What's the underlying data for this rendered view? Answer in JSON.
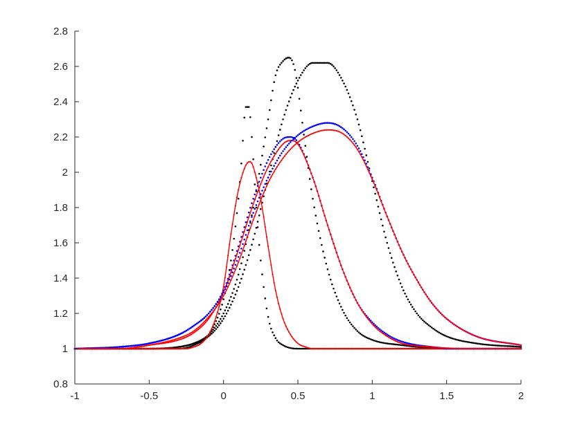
{
  "chart_data": {
    "type": "line",
    "title": "",
    "xlabel": "",
    "ylabel": "",
    "xlim": [
      -1,
      2
    ],
    "ylim": [
      0.8,
      2.8
    ],
    "grid": false,
    "x_ticks": [
      -1,
      -0.5,
      0,
      0.5,
      1,
      1.5,
      2
    ],
    "x_tick_labels": [
      "-1",
      "-0.5",
      "0",
      "0.5",
      "1",
      "1.5",
      "2"
    ],
    "y_ticks": [
      0.8,
      1,
      1.2,
      1.4,
      1.6,
      1.8,
      2,
      2.2,
      2.4,
      2.6,
      2.8
    ],
    "y_tick_labels": [
      "0.8",
      "1",
      "1.2",
      "1.4",
      "1.6",
      "1.8",
      "2",
      "2.2",
      "2.4",
      "2.6",
      "2.8"
    ],
    "colors": {
      "black": "#000000",
      "blue": "#0000ff",
      "red": "#ff0000"
    },
    "series": [
      {
        "style": "black-dots",
        "x": [
          -1,
          -0.5,
          -0.3,
          -0.2,
          -0.1,
          0,
          0.05,
          0.1,
          0.12,
          0.15,
          0.17,
          0.19,
          0.22,
          0.25,
          0.3,
          0.35,
          0.4,
          0.5,
          0.6,
          0.7,
          2
        ],
        "y": [
          1,
          1,
          1.0,
          1.02,
          1.08,
          1.28,
          1.5,
          1.85,
          2.05,
          2.37,
          2.37,
          2.2,
          1.8,
          1.5,
          1.18,
          1.06,
          1.02,
          1.0,
          1.0,
          1,
          1
        ]
      },
      {
        "style": "black-dots",
        "x": [
          -1,
          -0.5,
          -0.3,
          -0.2,
          -0.1,
          0,
          0.1,
          0.2,
          0.3,
          0.35,
          0.4,
          0.44,
          0.48,
          0.55,
          0.6,
          0.7,
          0.8,
          0.9,
          1.0,
          1.2,
          1.5,
          2
        ],
        "y": [
          1,
          1,
          1.01,
          1.03,
          1.08,
          1.2,
          1.42,
          1.8,
          2.3,
          2.55,
          2.63,
          2.65,
          2.58,
          2.15,
          1.85,
          1.45,
          1.22,
          1.1,
          1.05,
          1.02,
          1.0,
          1
        ]
      },
      {
        "style": "black-dots",
        "x": [
          -1,
          -0.5,
          -0.3,
          -0.2,
          -0.1,
          0,
          0.1,
          0.2,
          0.3,
          0.4,
          0.5,
          0.6,
          0.7,
          0.8,
          0.9,
          1.0,
          1.1,
          1.2,
          1.3,
          1.4,
          1.5,
          1.7,
          2
        ],
        "y": [
          1,
          1.0,
          1.01,
          1.03,
          1.07,
          1.17,
          1.35,
          1.62,
          1.97,
          2.3,
          2.52,
          2.62,
          2.62,
          2.52,
          2.3,
          1.95,
          1.6,
          1.35,
          1.2,
          1.12,
          1.07,
          1.03,
          1.01
        ]
      },
      {
        "style": "red-line",
        "x": [
          -1,
          -0.5,
          -0.3,
          -0.25,
          -0.2,
          -0.15,
          -0.1,
          -0.05,
          0,
          0.05,
          0.1,
          0.15,
          0.18,
          0.22,
          0.25,
          0.3,
          0.35,
          0.4,
          0.45,
          0.5,
          0.55,
          0.6,
          0.7,
          1,
          2
        ],
        "y": [
          1,
          1,
          1.0,
          1.0,
          1.01,
          1.03,
          1.08,
          1.18,
          1.35,
          1.65,
          1.9,
          2.04,
          2.06,
          1.97,
          1.85,
          1.58,
          1.33,
          1.17,
          1.08,
          1.03,
          1.01,
          1.0,
          1,
          1,
          1
        ]
      },
      {
        "style": "blue-dots",
        "x": [
          -1,
          -0.7,
          -0.5,
          -0.3,
          -0.2,
          -0.1,
          0,
          0.1,
          0.2,
          0.3,
          0.4,
          0.45,
          0.5,
          0.6,
          0.7,
          0.8,
          0.9,
          1.0,
          1.1,
          1.2,
          1.4,
          1.6,
          2
        ],
        "y": [
          1,
          1.01,
          1.03,
          1.08,
          1.13,
          1.2,
          1.33,
          1.58,
          1.85,
          2.07,
          2.19,
          2.2,
          2.17,
          1.97,
          1.7,
          1.45,
          1.26,
          1.15,
          1.08,
          1.04,
          1.01,
          1.0,
          1
        ]
      },
      {
        "style": "red-line",
        "x": [
          -1,
          -0.7,
          -0.5,
          -0.3,
          -0.2,
          -0.1,
          0,
          0.1,
          0.2,
          0.3,
          0.4,
          0.45,
          0.5,
          0.6,
          0.7,
          0.8,
          0.9,
          1.0,
          1.1,
          1.2,
          1.4,
          1.6,
          2
        ],
        "y": [
          1,
          1.0,
          1.02,
          1.05,
          1.09,
          1.17,
          1.32,
          1.56,
          1.82,
          2.03,
          2.16,
          2.18,
          2.16,
          1.97,
          1.7,
          1.45,
          1.26,
          1.14,
          1.07,
          1.03,
          1.01,
          1.0,
          1
        ]
      },
      {
        "style": "blue-dots",
        "x": [
          -1,
          -0.7,
          -0.5,
          -0.3,
          -0.2,
          -0.1,
          0,
          0.1,
          0.2,
          0.3,
          0.4,
          0.5,
          0.6,
          0.7,
          0.8,
          0.9,
          1.0,
          1.1,
          1.2,
          1.3,
          1.4,
          1.5,
          1.7,
          2
        ],
        "y": [
          1,
          1.01,
          1.03,
          1.08,
          1.13,
          1.2,
          1.32,
          1.52,
          1.77,
          1.97,
          2.12,
          2.21,
          2.26,
          2.28,
          2.25,
          2.15,
          1.97,
          1.75,
          1.55,
          1.39,
          1.26,
          1.17,
          1.07,
          1.02
        ]
      },
      {
        "style": "red-line",
        "x": [
          -1,
          -0.7,
          -0.5,
          -0.3,
          -0.2,
          -0.1,
          0,
          0.1,
          0.2,
          0.3,
          0.4,
          0.5,
          0.6,
          0.7,
          0.8,
          0.9,
          1.0,
          1.1,
          1.2,
          1.3,
          1.4,
          1.5,
          1.7,
          2
        ],
        "y": [
          1,
          1.0,
          1.02,
          1.06,
          1.1,
          1.18,
          1.3,
          1.49,
          1.73,
          1.94,
          2.08,
          2.17,
          2.22,
          2.24,
          2.22,
          2.13,
          1.96,
          1.75,
          1.55,
          1.39,
          1.26,
          1.17,
          1.07,
          1.02
        ]
      }
    ]
  }
}
